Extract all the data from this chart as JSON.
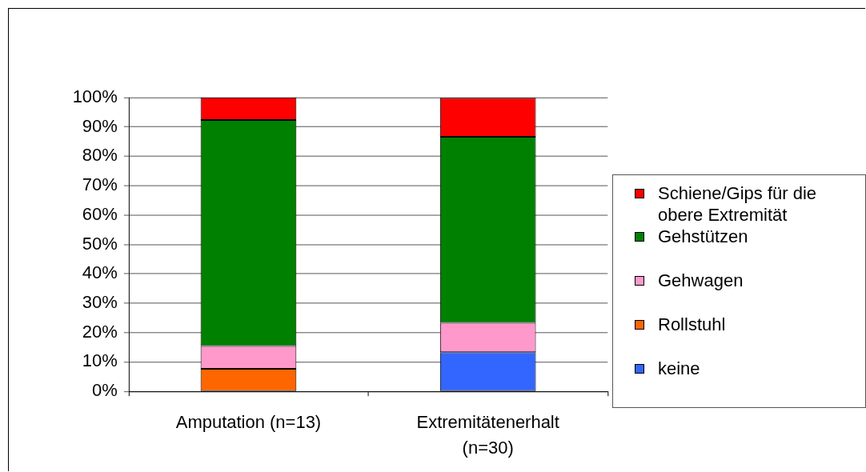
{
  "chart_data": {
    "type": "bar",
    "stacked": true,
    "categories": [
      "Amputation (n=13)",
      "Extremitätenerhalt (n=30)"
    ],
    "series": [
      {
        "name": "keine",
        "color": "#3366ff",
        "values": [
          0,
          13.3
        ]
      },
      {
        "name": "Rollstuhl",
        "color": "#ff6600",
        "values": [
          7.7,
          0
        ]
      },
      {
        "name": "Gehwagen",
        "color": "#ff99cc",
        "values": [
          7.7,
          10
        ]
      },
      {
        "name": "Gehstützen",
        "color": "#008000",
        "values": [
          76.9,
          63.3
        ]
      },
      {
        "name": "Schiene/Gips für die obere Extremität",
        "color": "#ff0000",
        "values": [
          7.7,
          13.3
        ]
      }
    ],
    "ylim": [
      0,
      100
    ],
    "yticks": [
      {
        "value": 0,
        "label": "0%"
      },
      {
        "value": 10,
        "label": "10%"
      },
      {
        "value": 20,
        "label": "20%"
      },
      {
        "value": 30,
        "label": "30%"
      },
      {
        "value": 40,
        "label": "40%"
      },
      {
        "value": 50,
        "label": "50%"
      },
      {
        "value": 60,
        "label": "60%"
      },
      {
        "value": 70,
        "label": "70%"
      },
      {
        "value": 80,
        "label": "80%"
      },
      {
        "value": 90,
        "label": "90%"
      },
      {
        "value": 100,
        "label": "100%"
      }
    ],
    "grid": "y",
    "legend": "right"
  }
}
